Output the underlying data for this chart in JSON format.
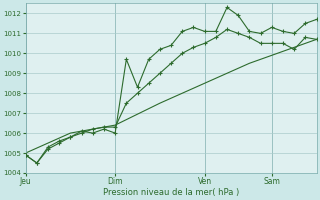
{
  "bg_color": "#cce8e8",
  "plot_bg_color": "#dff0f0",
  "grid_color": "#aacccc",
  "line_color": "#2d6b2d",
  "xlabel": "Pression niveau de la mer( hPa )",
  "ylim": [
    1004,
    1012.5
  ],
  "yticks": [
    1004,
    1005,
    1006,
    1007,
    1008,
    1009,
    1010,
    1011,
    1012
  ],
  "xtick_labels": [
    "Jeu",
    "Dim",
    "Ven",
    "Sam"
  ],
  "xtick_positions": [
    0,
    8,
    16,
    22
  ],
  "vline_positions": [
    0,
    8,
    16,
    22
  ],
  "series1_x": [
    0,
    1,
    2,
    3,
    4,
    5,
    6,
    7,
    8,
    9,
    10,
    11,
    12,
    13,
    14,
    15,
    16,
    17,
    18,
    19,
    20,
    21,
    22,
    23,
    24,
    25,
    26
  ],
  "series1_y": [
    1004.9,
    1004.5,
    1005.3,
    1005.6,
    1005.8,
    1006.1,
    1006.0,
    1006.2,
    1006.0,
    1009.7,
    1008.3,
    1009.7,
    1010.2,
    1010.4,
    1011.1,
    1011.3,
    1011.1,
    1011.1,
    1012.3,
    1011.9,
    1011.1,
    1011.0,
    1011.3,
    1011.1,
    1011.0,
    1011.5,
    1011.7
  ],
  "series2_x": [
    0,
    1,
    2,
    3,
    4,
    5,
    6,
    7,
    8,
    9,
    10,
    11,
    12,
    13,
    14,
    15,
    16,
    17,
    18,
    19,
    20,
    21,
    22,
    23,
    24,
    25,
    26
  ],
  "series2_y": [
    1004.9,
    1004.5,
    1005.2,
    1005.5,
    1005.8,
    1006.0,
    1006.2,
    1006.3,
    1006.3,
    1007.5,
    1008.0,
    1008.5,
    1009.0,
    1009.5,
    1010.0,
    1010.3,
    1010.5,
    1010.8,
    1011.2,
    1011.0,
    1010.8,
    1010.5,
    1010.5,
    1010.5,
    1010.2,
    1010.8,
    1010.7
  ],
  "series3_x": [
    0,
    4,
    8,
    12,
    16,
    20,
    26
  ],
  "series3_y": [
    1005.0,
    1006.0,
    1006.4,
    1007.5,
    1008.5,
    1009.5,
    1010.7
  ],
  "n_total": 27,
  "xlim": [
    0,
    26
  ]
}
